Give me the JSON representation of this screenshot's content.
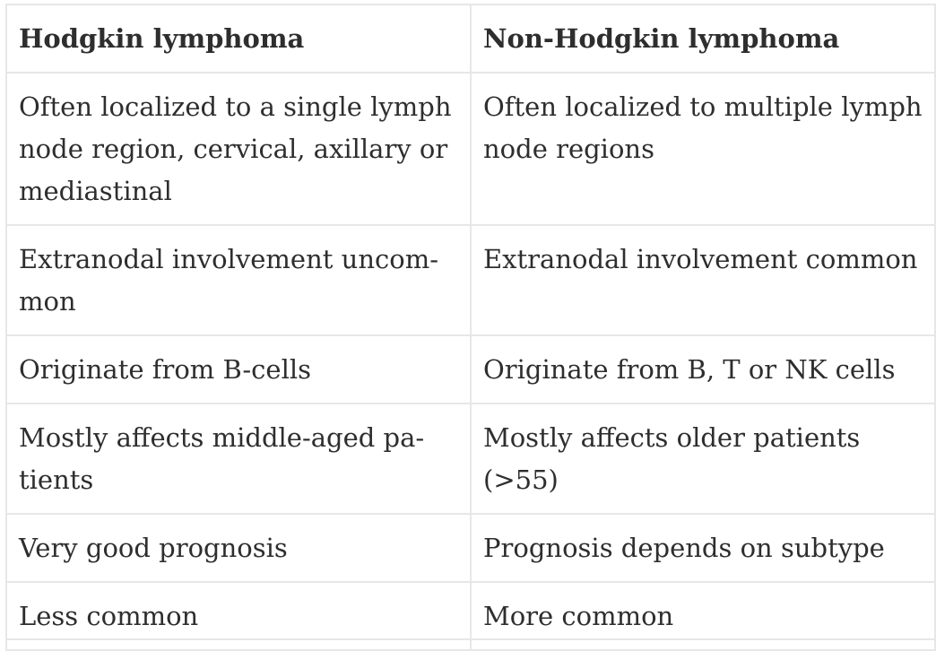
{
  "table": {
    "headers": [
      "Hodgkin lymphoma",
      "Non-Hodgkin lymphoma"
    ],
    "rows": [
      [
        "Often localized to a single lymph node region, cervical, axillary or mediastinal",
        "Often localized to multiple lymph node regions"
      ],
      [
        "Extranodal involvement uncom-mon",
        "Extranodal involvement common"
      ],
      [
        "Originate from B-cells",
        "Originate from B, T or NK cells"
      ],
      [
        "Mostly affects middle-aged pa-tients",
        "Mostly affects older patients (>55)"
      ],
      [
        "Very good prognosis",
        "Prognosis depends on subtype"
      ],
      [
        "Less common",
        "More common"
      ]
    ]
  }
}
